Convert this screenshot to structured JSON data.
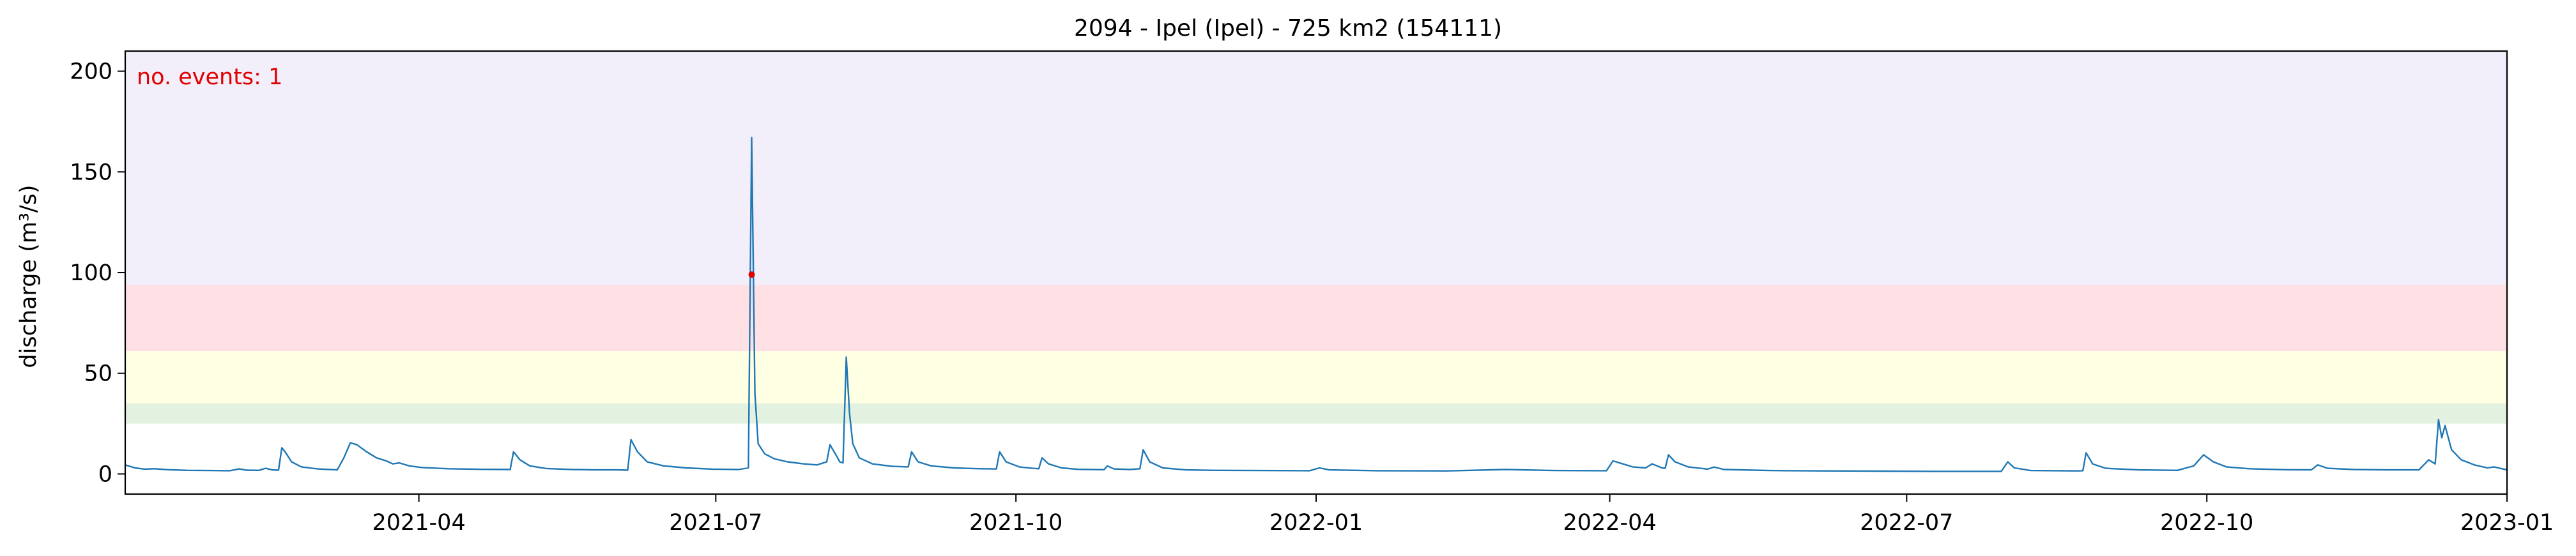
{
  "chart_data": {
    "type": "line",
    "title": "2094 - Ipel (Ipel) - 725 km2 (154111)",
    "xlabel": "",
    "ylabel": "discharge (m³/s)",
    "xlim": [
      "2021-01-01",
      "2023-01-01"
    ],
    "ylim": [
      -10,
      210
    ],
    "x_ticks": [
      "2021-04",
      "2021-07",
      "2021-10",
      "2022-01",
      "2022-04",
      "2022-07",
      "2022-10",
      "2023-01"
    ],
    "y_ticks": [
      0,
      50,
      100,
      150,
      200
    ],
    "grid": false,
    "colors": {
      "line": "#1f77b4",
      "event": "#e00000",
      "annotation": "#e00000"
    },
    "bands": [
      {
        "from": 25,
        "to": 35,
        "color": "#e3f1e1"
      },
      {
        "from": 35,
        "to": 61,
        "color": "#ffffe3"
      },
      {
        "from": 61,
        "to": 94,
        "color": "#ffe1e5"
      },
      {
        "from": 94,
        "to": 210,
        "color": "#f2eefa"
      }
    ],
    "annotation": "no. events: 1",
    "events": [
      {
        "x": "2021-07-12",
        "y": 99
      }
    ],
    "series": [
      {
        "points": [
          [
            "2021-01-01",
            4.5
          ],
          [
            "2021-01-04",
            3.0
          ],
          [
            "2021-01-07",
            2.4
          ],
          [
            "2021-01-10",
            2.6
          ],
          [
            "2021-01-14",
            2.1
          ],
          [
            "2021-01-20",
            1.8
          ],
          [
            "2021-01-27",
            1.7
          ],
          [
            "2021-02-02",
            1.6
          ],
          [
            "2021-02-05",
            2.5
          ],
          [
            "2021-02-07",
            1.9
          ],
          [
            "2021-02-11",
            1.8
          ],
          [
            "2021-02-13",
            2.8
          ],
          [
            "2021-02-15",
            2.0
          ],
          [
            "2021-02-17",
            1.9
          ],
          [
            "2021-02-18",
            13.0
          ],
          [
            "2021-02-19",
            11.0
          ],
          [
            "2021-02-21",
            6.0
          ],
          [
            "2021-02-24",
            3.5
          ],
          [
            "2021-03-01",
            2.5
          ],
          [
            "2021-03-07",
            2.0
          ],
          [
            "2021-03-09",
            8.0
          ],
          [
            "2021-03-11",
            15.5
          ],
          [
            "2021-03-13",
            14.5
          ],
          [
            "2021-03-16",
            11.0
          ],
          [
            "2021-03-19",
            8.0
          ],
          [
            "2021-03-22",
            6.5
          ],
          [
            "2021-03-24",
            5.0
          ],
          [
            "2021-03-26",
            5.5
          ],
          [
            "2021-03-29",
            4.0
          ],
          [
            "2021-04-02",
            3.2
          ],
          [
            "2021-04-10",
            2.6
          ],
          [
            "2021-04-20",
            2.3
          ],
          [
            "2021-04-29",
            2.2
          ],
          [
            "2021-04-30",
            11.0
          ],
          [
            "2021-05-02",
            7.0
          ],
          [
            "2021-05-05",
            4.0
          ],
          [
            "2021-05-10",
            2.7
          ],
          [
            "2021-05-18",
            2.2
          ],
          [
            "2021-05-25",
            2.0
          ],
          [
            "2021-06-01",
            2.0
          ],
          [
            "2021-06-04",
            1.9
          ],
          [
            "2021-06-05",
            17.0
          ],
          [
            "2021-06-07",
            11.0
          ],
          [
            "2021-06-10",
            6.0
          ],
          [
            "2021-06-15",
            4.0
          ],
          [
            "2021-06-22",
            3.0
          ],
          [
            "2021-06-30",
            2.4
          ],
          [
            "2021-07-08",
            2.2
          ],
          [
            "2021-07-11",
            3.0
          ],
          [
            "2021-07-12",
            167.0
          ],
          [
            "2021-07-13",
            40.0
          ],
          [
            "2021-07-14",
            15.0
          ],
          [
            "2021-07-16",
            10.0
          ],
          [
            "2021-07-19",
            7.5
          ],
          [
            "2021-07-23",
            6.0
          ],
          [
            "2021-07-28",
            5.0
          ],
          [
            "2021-08-01",
            4.5
          ],
          [
            "2021-08-04",
            6.0
          ],
          [
            "2021-08-05",
            14.5
          ],
          [
            "2021-08-07",
            9.0
          ],
          [
            "2021-08-08",
            6.0
          ],
          [
            "2021-08-09",
            5.5
          ],
          [
            "2021-08-10",
            58.0
          ],
          [
            "2021-08-11",
            30.0
          ],
          [
            "2021-08-12",
            15.0
          ],
          [
            "2021-08-14",
            8.0
          ],
          [
            "2021-08-18",
            5.0
          ],
          [
            "2021-08-24",
            3.8
          ],
          [
            "2021-08-29",
            3.5
          ],
          [
            "2021-08-30",
            11.0
          ],
          [
            "2021-09-01",
            6.0
          ],
          [
            "2021-09-05",
            4.0
          ],
          [
            "2021-09-12",
            3.0
          ],
          [
            "2021-09-20",
            2.6
          ],
          [
            "2021-09-25",
            2.5
          ],
          [
            "2021-09-26",
            11.0
          ],
          [
            "2021-09-28",
            6.0
          ],
          [
            "2021-10-02",
            3.5
          ],
          [
            "2021-10-06",
            2.8
          ],
          [
            "2021-10-08",
            2.6
          ],
          [
            "2021-10-09",
            8.0
          ],
          [
            "2021-10-11",
            5.0
          ],
          [
            "2021-10-15",
            3.0
          ],
          [
            "2021-10-20",
            2.3
          ],
          [
            "2021-10-28",
            2.1
          ],
          [
            "2021-10-29",
            4.0
          ],
          [
            "2021-10-31",
            2.5
          ],
          [
            "2021-11-05",
            2.2
          ],
          [
            "2021-11-08",
            2.6
          ],
          [
            "2021-11-09",
            12.0
          ],
          [
            "2021-11-11",
            6.0
          ],
          [
            "2021-11-15",
            3.0
          ],
          [
            "2021-11-22",
            2.0
          ],
          [
            "2021-12-01",
            1.8
          ],
          [
            "2021-12-15",
            1.7
          ],
          [
            "2021-12-30",
            1.6
          ],
          [
            "2022-01-02",
            3.0
          ],
          [
            "2022-01-05",
            2.0
          ],
          [
            "2022-01-20",
            1.6
          ],
          [
            "2022-02-10",
            1.5
          ],
          [
            "2022-02-28",
            2.2
          ],
          [
            "2022-03-15",
            1.7
          ],
          [
            "2022-03-31",
            1.6
          ],
          [
            "2022-04-02",
            6.5
          ],
          [
            "2022-04-05",
            5.0
          ],
          [
            "2022-04-08",
            3.5
          ],
          [
            "2022-04-12",
            3.0
          ],
          [
            "2022-04-14",
            5.0
          ],
          [
            "2022-04-17",
            3.0
          ],
          [
            "2022-04-18",
            2.8
          ],
          [
            "2022-04-19",
            9.5
          ],
          [
            "2022-04-21",
            6.0
          ],
          [
            "2022-04-25",
            3.5
          ],
          [
            "2022-05-01",
            2.4
          ],
          [
            "2022-05-03",
            3.4
          ],
          [
            "2022-05-06",
            2.2
          ],
          [
            "2022-05-20",
            1.7
          ],
          [
            "2022-06-05",
            1.5
          ],
          [
            "2022-06-20",
            1.4
          ],
          [
            "2022-07-10",
            1.3
          ],
          [
            "2022-07-30",
            1.3
          ],
          [
            "2022-08-01",
            6.0
          ],
          [
            "2022-08-03",
            3.0
          ],
          [
            "2022-08-08",
            1.7
          ],
          [
            "2022-08-22",
            1.5
          ],
          [
            "2022-08-24",
            1.6
          ],
          [
            "2022-08-25",
            10.5
          ],
          [
            "2022-08-27",
            5.0
          ],
          [
            "2022-08-31",
            2.8
          ],
          [
            "2022-09-10",
            2.0
          ],
          [
            "2022-09-22",
            1.8
          ],
          [
            "2022-09-27",
            4.0
          ],
          [
            "2022-09-30",
            9.5
          ],
          [
            "2022-10-03",
            6.0
          ],
          [
            "2022-10-07",
            3.5
          ],
          [
            "2022-10-14",
            2.6
          ],
          [
            "2022-10-25",
            2.1
          ],
          [
            "2022-11-02",
            2.0
          ],
          [
            "2022-11-04",
            4.5
          ],
          [
            "2022-11-07",
            2.8
          ],
          [
            "2022-11-15",
            2.2
          ],
          [
            "2022-11-25",
            2.0
          ],
          [
            "2022-12-05",
            2.0
          ],
          [
            "2022-12-08",
            7.0
          ],
          [
            "2022-12-10",
            5.0
          ],
          [
            "2022-12-11",
            27.0
          ],
          [
            "2022-12-12",
            18.0
          ],
          [
            "2022-12-13",
            24.0
          ],
          [
            "2022-12-15",
            12.0
          ],
          [
            "2022-12-18",
            7.0
          ],
          [
            "2022-12-22",
            4.5
          ],
          [
            "2022-12-26",
            3.0
          ],
          [
            "2022-12-28",
            3.5
          ],
          [
            "2023-01-01",
            2.0
          ]
        ]
      }
    ]
  }
}
